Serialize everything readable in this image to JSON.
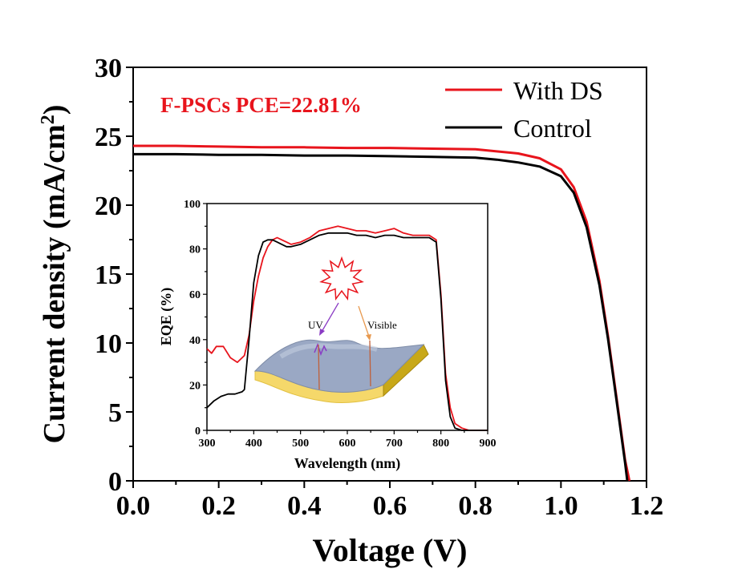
{
  "colors": {
    "with_ds": "#e8141c",
    "control": "#000000",
    "annotation": "#e8141c",
    "uv_arrow": "#8a3bc4",
    "visible_arrow": "#e89a50",
    "device_top": "#9aa8c4",
    "device_side": "#f5d86a",
    "device_edge": "#c8a818"
  },
  "chart_data": [
    {
      "type": "line",
      "xlabel": "Voltage (V)",
      "ylabel": "Current density (mA/cm",
      "ylabel_sup": "2",
      "ylabel_end": ")",
      "xlim": [
        0,
        1.2
      ],
      "ylim": [
        0,
        30
      ],
      "xticks": [
        "0.0",
        "0.2",
        "0.4",
        "0.6",
        "0.8",
        "1.0",
        "1.2"
      ],
      "yticks": [
        "0",
        "5",
        "10",
        "15",
        "20",
        "25",
        "30"
      ],
      "annotation": "F-PSCs PCE=22.81%",
      "legend": [
        "With DS",
        "Control"
      ],
      "legend_position": "top-right",
      "series": [
        {
          "name": "With DS",
          "x": [
            0,
            0.1,
            0.2,
            0.3,
            0.4,
            0.5,
            0.6,
            0.7,
            0.8,
            0.85,
            0.9,
            0.95,
            1.0,
            1.03,
            1.06,
            1.09,
            1.11,
            1.13,
            1.15,
            1.16
          ],
          "y": [
            24.3,
            24.3,
            24.25,
            24.2,
            24.2,
            24.15,
            24.15,
            24.1,
            24.05,
            23.9,
            23.75,
            23.4,
            22.6,
            21.3,
            18.8,
            14.5,
            10.5,
            6.0,
            1.5,
            0
          ]
        },
        {
          "name": "Control",
          "x": [
            0,
            0.1,
            0.2,
            0.3,
            0.4,
            0.5,
            0.6,
            0.7,
            0.8,
            0.85,
            0.9,
            0.95,
            1.0,
            1.03,
            1.06,
            1.09,
            1.11,
            1.13,
            1.15,
            1.155
          ],
          "y": [
            23.7,
            23.7,
            23.65,
            23.65,
            23.6,
            23.6,
            23.55,
            23.5,
            23.45,
            23.3,
            23.1,
            22.8,
            22.1,
            20.9,
            18.4,
            14.2,
            10.3,
            5.8,
            1.3,
            0
          ]
        }
      ]
    },
    {
      "type": "line",
      "xlabel": "Wavelength (nm)",
      "ylabel": "EQE (%)",
      "xlim": [
        300,
        900
      ],
      "ylim": [
        0,
        100
      ],
      "xticks": [
        "300",
        "400",
        "500",
        "600",
        "700",
        "800",
        "900"
      ],
      "yticks": [
        "0",
        "20",
        "40",
        "60",
        "80",
        "100"
      ],
      "series": [
        {
          "x": [
            300,
            310,
            320,
            335,
            350,
            365,
            380,
            390,
            400,
            410,
            420,
            430,
            440,
            450,
            460,
            470,
            480,
            500,
            520,
            540,
            560,
            580,
            600,
            620,
            640,
            660,
            680,
            700,
            720,
            740,
            760,
            775,
            790,
            800,
            810,
            820,
            830,
            845,
            860,
            880,
            900
          ],
          "y": [
            36,
            34,
            37,
            37,
            32,
            30,
            33,
            42,
            57,
            68,
            76,
            81,
            84,
            85,
            84,
            83,
            82,
            83,
            85,
            88,
            89,
            90,
            89,
            88,
            88,
            87,
            88,
            89,
            87,
            86,
            86,
            86,
            84,
            60,
            25,
            10,
            3,
            1,
            0,
            0,
            0
          ]
        },
        {
          "x": [
            300,
            315,
            330,
            345,
            360,
            375,
            380,
            390,
            400,
            410,
            420,
            430,
            440,
            450,
            460,
            470,
            480,
            500,
            520,
            540,
            560,
            580,
            600,
            620,
            640,
            660,
            680,
            700,
            720,
            740,
            760,
            775,
            790,
            800,
            810,
            820,
            830,
            845,
            860,
            880,
            900
          ],
          "y": [
            10,
            13,
            15,
            16,
            16,
            17,
            18,
            40,
            65,
            77,
            83,
            84,
            84,
            83,
            82,
            81,
            81,
            82,
            84,
            86,
            87,
            87,
            87,
            86,
            86,
            85,
            86,
            86,
            85,
            85,
            85,
            85,
            83,
            58,
            22,
            6,
            1,
            0,
            0,
            0,
            0
          ]
        }
      ],
      "labels": {
        "uv": "UV",
        "visible": "Visible"
      }
    }
  ]
}
